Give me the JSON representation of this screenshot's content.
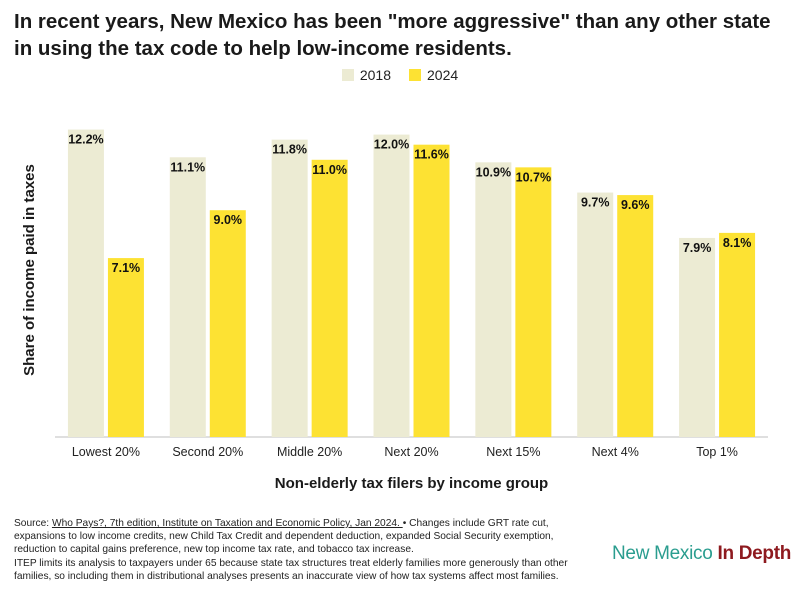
{
  "colors": {
    "series_2018": "#ecebd3",
    "series_2024": "#fde233",
    "axis": "#bfbfbf",
    "logo_primary": "#2a9d8f",
    "logo_secondary": "#8e1a1f"
  },
  "title": "In recent years, New Mexico has been \"more aggressive\" than any other state in using the tax code to help low-income residents.",
  "legend": {
    "label_2018": "2018",
    "label_2024": "2024"
  },
  "chart_data": {
    "type": "bar",
    "title": "In recent years, New Mexico has been \"more aggressive\" than any other state in using the tax code to help low-income residents.",
    "xlabel": "Non-elderly tax filers by income group",
    "ylabel": "Share of income paid in taxes",
    "ylim": [
      0,
      12.5
    ],
    "grid": false,
    "legend_position": "top-center",
    "categories": [
      "Lowest 20%",
      "Second 20%",
      "Middle 20%",
      "Next 20%",
      "Next 15%",
      "Next 4%",
      "Top 1%"
    ],
    "series": [
      {
        "name": "2018",
        "values": [
          12.2,
          11.1,
          11.8,
          12.0,
          10.9,
          9.7,
          7.9
        ],
        "labels": [
          "12.2%",
          "11.1%",
          "11.8%",
          "12.0%",
          "10.9%",
          "9.7%",
          "7.9%"
        ]
      },
      {
        "name": "2024",
        "values": [
          7.1,
          9.0,
          11.0,
          11.6,
          10.7,
          9.6,
          8.1
        ],
        "labels": [
          "7.1%",
          "9.0%",
          "11.0%",
          "11.6%",
          "10.7%",
          "9.6%",
          "8.1%"
        ]
      }
    ]
  },
  "source": {
    "prefix": "Source: ",
    "link_text": "Who Pays?, 7th edition, Institute on Taxation and Economic Policy, Jan 2024. ",
    "note_1": "• Changes include GRT rate cut, expansions to low income credits, new Child Tax Credit and dependent deduction, expanded Social Security exemption, reduction to capital gains preference, new top income tax rate, and tobacco tax increase.",
    "note_2": "ITEP limits its analysis to taxpayers under 65 because state tax structures treat elderly families more generously than other families, so including them in distributional analyses presents an inaccurate view of how tax systems affect most families."
  },
  "logo": {
    "part_1": "New Mexico",
    "part_2": "In Depth"
  }
}
